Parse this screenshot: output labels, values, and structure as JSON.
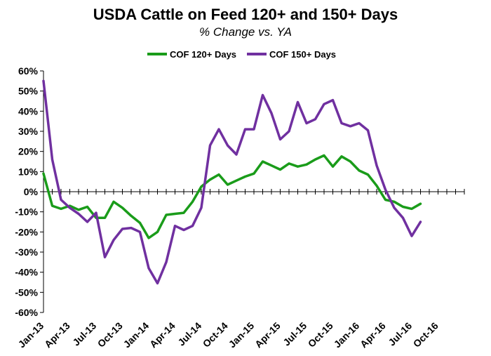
{
  "chart_data": {
    "type": "line",
    "title": "USDA Cattle on Feed 120+ and 150+ Days",
    "subtitle": "% Change vs. YA",
    "xlabel": "",
    "ylabel": "",
    "ylim": [
      -60,
      60
    ],
    "yticks": [
      "60%",
      "50%",
      "40%",
      "30%",
      "20%",
      "10%",
      "0%",
      "-10%",
      "-20%",
      "-30%",
      "-40%",
      "-50%",
      "-60%"
    ],
    "ytick_values": [
      60,
      50,
      40,
      30,
      20,
      10,
      0,
      -10,
      -20,
      -30,
      -40,
      -50,
      -60
    ],
    "x_tick_labels": [
      "Jan-13",
      "Apr-13",
      "Jul-13",
      "Oct-13",
      "Jan-14",
      "Apr-14",
      "Jul-14",
      "Oct-14",
      "Jan-15",
      "Apr-15",
      "Jul-15",
      "Oct-15",
      "Jan-16",
      "Apr-16",
      "Jul-16",
      "Oct-16"
    ],
    "x_tick_months": [
      0,
      3,
      6,
      9,
      12,
      15,
      18,
      21,
      24,
      27,
      30,
      33,
      36,
      39,
      42,
      45
    ],
    "xlim_months": [
      0,
      48
    ],
    "grid": false,
    "legend": "top-center",
    "series": [
      {
        "name": "COF 120+ Days",
        "color": "#1a9c1a",
        "x_months": [
          0,
          1,
          2,
          3,
          4,
          5,
          6,
          7,
          8,
          9,
          10,
          11,
          12,
          13,
          14,
          15,
          16,
          17,
          18,
          19,
          20,
          21,
          22,
          23,
          24,
          25,
          26,
          27,
          28,
          29,
          30,
          31,
          32,
          33,
          34,
          35,
          36,
          37,
          38,
          39,
          40,
          41,
          42,
          43
        ],
        "values": [
          9,
          -7,
          -8.5,
          -7,
          -9,
          -7.5,
          -13,
          -13,
          -5,
          -8,
          -12,
          -15.5,
          -23,
          -20,
          -11.5,
          -11,
          -10.5,
          -5,
          2.5,
          6,
          8.5,
          3.5,
          5.5,
          7.5,
          9,
          15,
          13,
          11,
          14,
          12.5,
          13.5,
          16,
          18,
          12.5,
          17.5,
          15,
          10.5,
          8.5,
          3,
          -4,
          -5,
          -7.5,
          -8.5,
          -6
        ]
      },
      {
        "name": "COF 150+ Days",
        "color": "#7030a0",
        "x_months": [
          0,
          1,
          2,
          3,
          4,
          5,
          6,
          7,
          8,
          9,
          10,
          11,
          12,
          13,
          14,
          15,
          16,
          17,
          18,
          19,
          20,
          21,
          22,
          23,
          24,
          25,
          26,
          27,
          28,
          29,
          30,
          31,
          32,
          33,
          34,
          35,
          36,
          37,
          38,
          39,
          40,
          41,
          42,
          43
        ],
        "values": [
          55,
          16,
          -4,
          -8,
          -11,
          -15,
          -10.5,
          -32.5,
          -24,
          -18.5,
          -18,
          -20,
          -38,
          -45.5,
          -35,
          -17,
          -19,
          -17,
          -8,
          23,
          31,
          23,
          18.5,
          31,
          31,
          48,
          39,
          26,
          30,
          44.5,
          34,
          36,
          43.5,
          45.5,
          34,
          32.5,
          34,
          30.5,
          13,
          1,
          -8,
          -13,
          -22,
          -15
        ]
      }
    ]
  }
}
